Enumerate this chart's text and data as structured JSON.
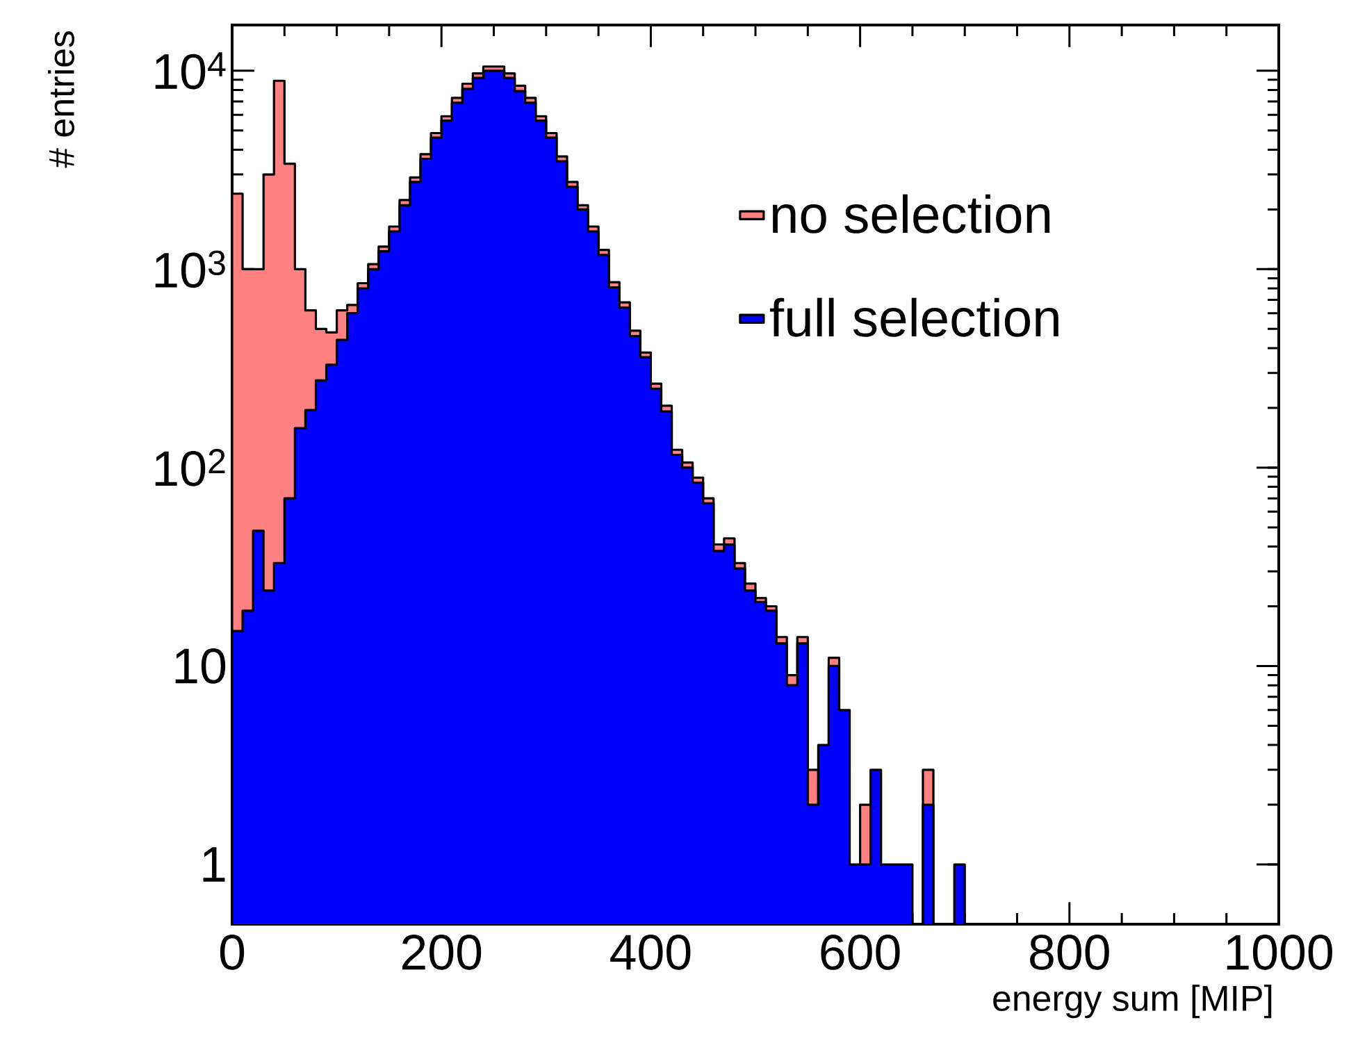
{
  "chart_data": {
    "type": "histogram",
    "xlabel": "energy sum [MIP]",
    "ylabel": "# entries",
    "bins": [
      0,
      10,
      20,
      30,
      40,
      50,
      60,
      70,
      80,
      90,
      100,
      110,
      120,
      130,
      140,
      150,
      160,
      170,
      180,
      190,
      200,
      210,
      220,
      230,
      240,
      250,
      260,
      270,
      280,
      290,
      300,
      310,
      320,
      330,
      340,
      350,
      360,
      370,
      380,
      390,
      400,
      410,
      420,
      430,
      440,
      450,
      460,
      470,
      480,
      490,
      500,
      510,
      520,
      530,
      540,
      550,
      560,
      570,
      580,
      590,
      600,
      610,
      620,
      630,
      640,
      650,
      660,
      670,
      680,
      690,
      700,
      710,
      720,
      730,
      740,
      750,
      760,
      770,
      780,
      790,
      800,
      810,
      820,
      830,
      840,
      850,
      860,
      870,
      880,
      890,
      900,
      910,
      920,
      930,
      940,
      950,
      960,
      970,
      980,
      990,
      1000
    ],
    "series": [
      {
        "name": "no selection",
        "color": "#ff8080",
        "values": [
          2400,
          1000,
          1000,
          3000,
          8900,
          3400,
          1000,
          620,
          500,
          480,
          620,
          660,
          850,
          1060,
          1300,
          1640,
          2230,
          2900,
          3800,
          4850,
          5900,
          7300,
          8600,
          9700,
          10500,
          10500,
          9700,
          8400,
          7300,
          5900,
          4850,
          3700,
          2750,
          2100,
          1640,
          1250,
          860,
          680,
          490,
          380,
          265,
          205,
          123,
          106,
          89,
          70,
          41,
          44,
          33,
          26,
          22,
          20,
          14,
          9,
          14,
          3,
          null,
          11,
          null,
          null,
          2,
          null,
          null,
          null,
          null,
          null,
          3,
          null,
          null,
          null,
          null,
          null,
          null,
          null,
          null,
          null,
          null,
          null,
          null,
          null,
          null,
          null,
          null,
          null,
          null,
          null,
          null,
          null,
          null,
          null,
          null,
          null,
          null,
          null,
          null,
          null,
          null,
          null,
          null,
          null
        ]
      },
      {
        "name": "full selection",
        "color": "#0000ff",
        "values": [
          15,
          19,
          48,
          24,
          33,
          70,
          158,
          195,
          275,
          330,
          440,
          600,
          800,
          1000,
          1230,
          1550,
          2100,
          2750,
          3600,
          4600,
          5600,
          6900,
          8100,
          9200,
          10000,
          10000,
          9200,
          7900,
          6900,
          5600,
          4600,
          3500,
          2600,
          2000,
          1550,
          1180,
          810,
          640,
          460,
          360,
          250,
          192,
          116,
          100,
          84,
          66,
          38,
          41,
          31,
          24,
          21,
          19,
          13,
          8,
          13,
          2,
          4,
          10,
          6,
          1,
          1,
          3,
          1,
          1,
          1,
          null,
          2,
          null,
          null,
          1,
          null,
          null,
          null,
          null,
          null,
          null,
          null,
          null,
          null,
          null,
          null,
          null,
          null,
          null,
          null,
          null,
          null,
          null,
          null,
          null,
          null,
          null,
          null,
          null,
          null,
          null,
          null,
          null,
          null,
          null
        ]
      }
    ],
    "xlim": [
      0,
      1000
    ],
    "ylim": [
      0.5,
      17000
    ],
    "xticks": [
      0,
      200,
      400,
      600,
      800,
      1000
    ],
    "yticks": [
      1,
      10,
      {
        "value": 100,
        "label": "10$^{2}$"
      },
      {
        "value": 1000,
        "label": "10$^{3}$"
      },
      {
        "value": 10000,
        "label": "10$^{4}$"
      }
    ],
    "log": "y",
    "legend": "right"
  }
}
